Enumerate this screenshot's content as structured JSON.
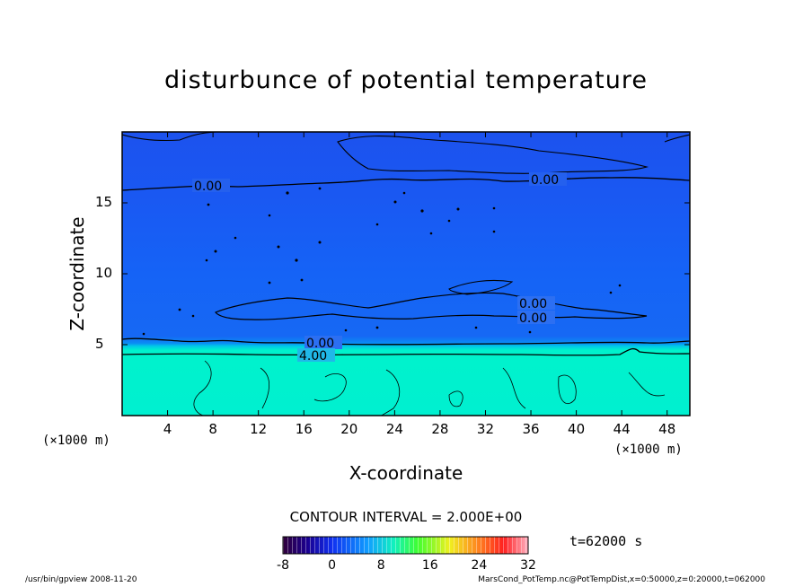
{
  "chart_data": {
    "type": "heatmap",
    "title": "disturbunce of potential temperature",
    "xlabel": "X-coordinate",
    "ylabel": "Z-coordinate",
    "x_unit": "(×1000 m)",
    "z_unit": "(×1000 m)",
    "xlim": [
      0,
      50
    ],
    "ylim": [
      0,
      20
    ],
    "x_ticks": [
      4,
      8,
      12,
      16,
      20,
      24,
      28,
      32,
      36,
      40,
      44,
      48
    ],
    "y_ticks": [
      5,
      10,
      15
    ],
    "contour_labels": [
      {
        "text": "0.00",
        "x": 8,
        "z": 15.6
      },
      {
        "text": "0.00",
        "x": 38,
        "z": 16.3
      },
      {
        "text": "0.00",
        "x": 38,
        "z": 7.8
      },
      {
        "text": "0.00",
        "x": 38,
        "z": 6.7
      },
      {
        "text": "0.00",
        "x": 17.5,
        "z": 5.0
      },
      {
        "text": "4.00",
        "x": 17,
        "z": 4.2
      }
    ],
    "contour_interval": "CONTOUR INTERVAL = 2.000E+00",
    "colorbar": {
      "ticks": [
        "-8",
        "0",
        "8",
        "16",
        "24",
        "32"
      ],
      "range": [
        -8,
        32
      ]
    },
    "time_label": "t=62000 s"
  },
  "footer": {
    "left": "/usr/bin/gpview   2008-11-20",
    "right": "MarsCond_PotTemp.nc@PotTempDist,x=0:50000,z=0:20000,t=062000"
  },
  "colors": {
    "upper_field": "#1a4ef0",
    "mid_field": "#1560f5",
    "lower_field": "#00f0cc",
    "boundary_band": "#0aa0f0"
  }
}
